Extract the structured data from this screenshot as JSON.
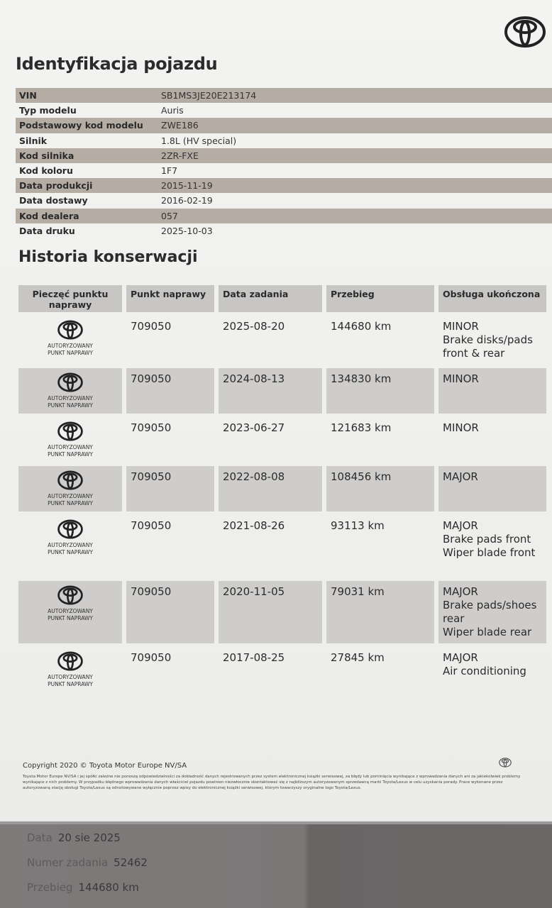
{
  "brand": {
    "logo": "toyota-logo-icon"
  },
  "identification": {
    "title": "Identyfikacja pojazdu",
    "rows": [
      {
        "label": "VIN",
        "value": "SB1MS3JE20E213174"
      },
      {
        "label": "Typ modelu",
        "value": "Auris"
      },
      {
        "label": "Podstawowy kod modelu",
        "value": "ZWE186"
      },
      {
        "label": "Silnik",
        "value": "1.8L (HV special)"
      },
      {
        "label": "Kod silnika",
        "value": "2ZR-FXE"
      },
      {
        "label": "Kod koloru",
        "value": "1F7"
      },
      {
        "label": "Data produkcji",
        "value": "2015-11-19"
      },
      {
        "label": "Data dostawy",
        "value": "2016-02-19"
      },
      {
        "label": "Kod dealera",
        "value": "057"
      },
      {
        "label": "Data druku",
        "value": "2025-10-03"
      }
    ]
  },
  "history": {
    "title": "Historia konserwacji",
    "headers": [
      "Pieczęć punktu naprawy",
      "Punkt naprawy",
      "Data zadania",
      "Przebieg",
      "Obsługa ukończona"
    ],
    "stamp": {
      "line1": "AUTORYZOWANY",
      "line2": "PUNKT NAPRAWY"
    },
    "rows": [
      {
        "point": "709050",
        "date": "2025-08-20",
        "mileage": "144680 km",
        "service": [
          "MINOR",
          "Brake disks/pads front & rear"
        ]
      },
      {
        "point": "709050",
        "date": "2024-08-13",
        "mileage": "134830 km",
        "service": [
          "MINOR"
        ]
      },
      {
        "point": "709050",
        "date": "2023-06-27",
        "mileage": "121683 km",
        "service": [
          "MINOR"
        ]
      },
      {
        "point": "709050",
        "date": "2022-08-08",
        "mileage": "108456 km",
        "service": [
          "MAJOR"
        ]
      },
      {
        "point": "709050",
        "date": "2021-08-26",
        "mileage": "93113 km",
        "service": [
          "MAJOR",
          "Brake pads front",
          "Wiper blade front"
        ]
      },
      {
        "point": "709050",
        "date": "2020-11-05",
        "mileage": "79031 km",
        "service": [
          "MAJOR",
          "Brake pads/shoes rear",
          "Wiper blade rear"
        ]
      },
      {
        "point": "709050",
        "date": "2017-08-25",
        "mileage": "27845 km",
        "service": [
          "MAJOR",
          "Air conditioning"
        ]
      }
    ]
  },
  "footer": {
    "copyright": "Copyright 2020 © Toyota Motor Europe NV/SA",
    "disclaimer": "Toyota Motor Europe NV/SA i jej spółki zależne nie ponoszą odpowiedzialności za dokładność danych rejestrowanych przez system elektronicznej książki serwisowej, za błędy lub pominięcia wynikające z wprowadzania danych ani za jakiekolwiek problemy wynikające z nich problemy. W przypadku błędnego wprowadzania danych właściciel pojazdu powinien niezwłocznie skontaktować się z najbliższym autoryzowanym sprzedawcą marki Toyota/Lexus w celu uzyskania porady. Prace wykonane przez autoryzowaną stację obsługi Toyota/Lexus są odnotowywane wyłącznie poprzez wpisy do elektronicznej książki serwisowej, którym towarzyszy oryginalne logo Toyota/Lexus."
  },
  "bottom": {
    "rows": [
      {
        "label": "Data",
        "value": "20 sie 2025"
      },
      {
        "label": "Numer zadania",
        "value": "52462"
      },
      {
        "label": "Przebieg",
        "value": "144680 km"
      }
    ]
  }
}
